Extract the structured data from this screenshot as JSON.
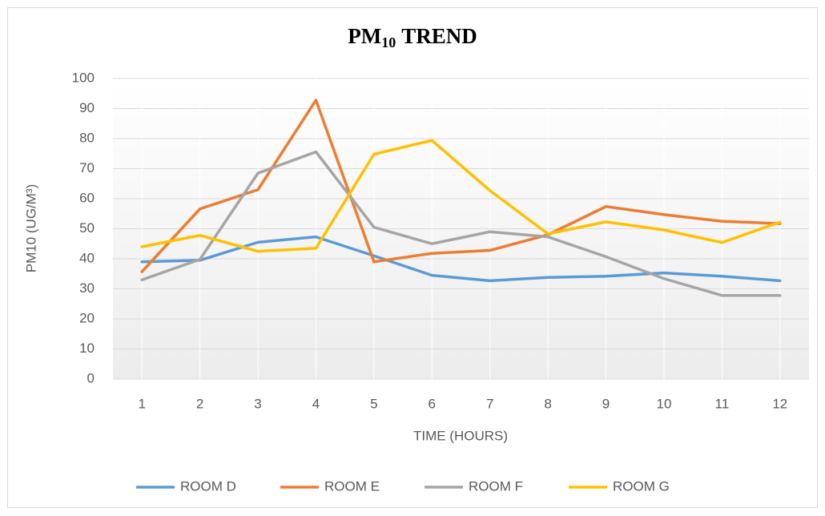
{
  "chart_data": {
    "type": "line",
    "title": {
      "main": "PM",
      "subscript": "10",
      "rest": "TREND"
    },
    "x_label": "TIME (HOURS)",
    "y_label": "PM10 (UG/M³)",
    "categories": [
      "1",
      "2",
      "3",
      "4",
      "5",
      "6",
      "7",
      "8",
      "9",
      "10",
      "11",
      "12"
    ],
    "series": [
      {
        "name": "ROOM D",
        "color": "#5b9bd5",
        "values": [
          39,
          39.5,
          45.5,
          47.3,
          41,
          34.5,
          32.7,
          33.8,
          34.2,
          35.3,
          34.2,
          32.7
        ]
      },
      {
        "name": "ROOM E",
        "color": "#ed7d31",
        "values": [
          35.7,
          56.6,
          63,
          92.8,
          39,
          41.8,
          42.8,
          48,
          57.4,
          54.7,
          52.5,
          51.7
        ]
      },
      {
        "name": "ROOM F",
        "color": "#a5a5a5",
        "values": [
          33,
          39.8,
          68.5,
          75.6,
          50.5,
          45,
          49,
          47.3,
          40.7,
          33.4,
          27.8,
          27.8
        ]
      },
      {
        "name": "ROOM G",
        "color": "#ffc000",
        "values": [
          44,
          47.8,
          42.5,
          43.5,
          74.8,
          79.4,
          62.7,
          48.3,
          52.3,
          49.6,
          45.4,
          52.2
        ]
      }
    ],
    "ylim": [
      0,
      100
    ],
    "yticks": [
      0,
      10,
      20,
      30,
      40,
      50,
      60,
      70,
      80,
      90,
      100
    ],
    "grid": true,
    "legend": "bottom"
  }
}
